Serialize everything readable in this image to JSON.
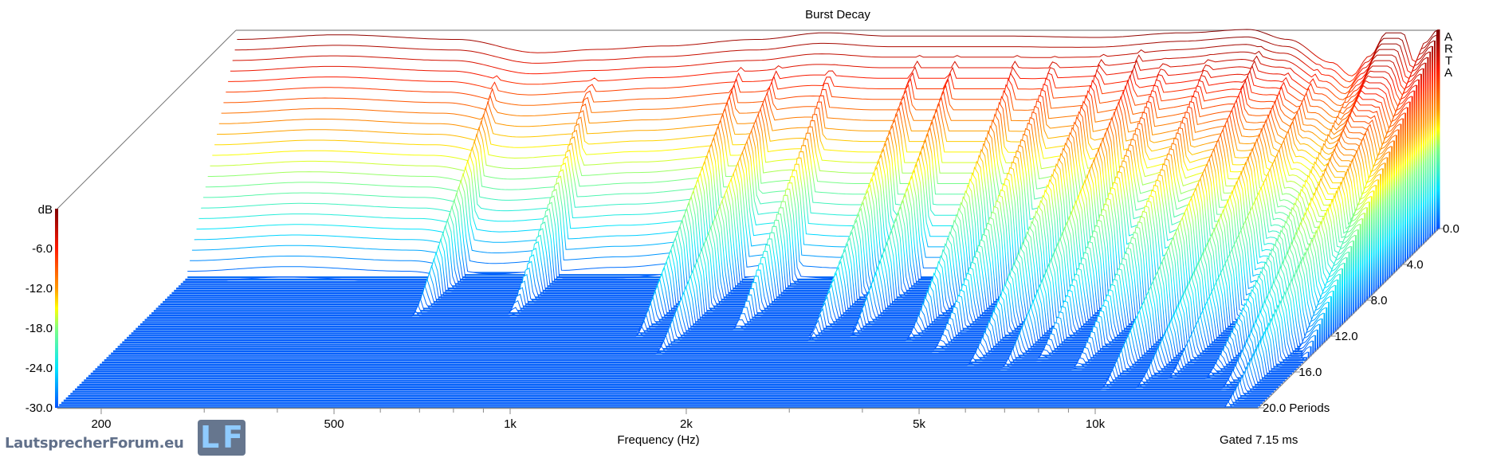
{
  "chart_data": {
    "type": "waterfall",
    "title": "Burst Decay",
    "xlabel": "Frequency (Hz)",
    "x_scale": "log",
    "x_range": [
      168,
      19000
    ],
    "x_ticks": [
      200,
      500,
      1000,
      2000,
      5000,
      10000
    ],
    "x_tick_labels": [
      "200",
      "500",
      "1k",
      "2k",
      "5k",
      "10k"
    ],
    "x_minor_ticks": [
      300,
      400,
      600,
      700,
      800,
      900,
      3000,
      4000,
      6000,
      7000,
      8000,
      9000
    ],
    "z_unit_label": "dB",
    "z_range": [
      -30,
      0
    ],
    "z_ticks": [
      -6,
      -12,
      -18,
      -24,
      -30
    ],
    "z_tick_labels": [
      "-6.0",
      "-12.0",
      "-18.0",
      "-24.0",
      "-30.0"
    ],
    "depth_range": [
      0,
      20
    ],
    "depth_ticks": [
      0,
      4,
      8,
      12,
      16,
      20
    ],
    "depth_tick_labels": [
      "0.0",
      "4.0",
      "8.0",
      "12.0",
      "16.0",
      "20.0 Periods"
    ],
    "footnote": "Gated 7.15 ms",
    "response_0_periods": {
      "freq_hz": [
        168,
        250,
        400,
        550,
        700,
        900,
        1300,
        1700,
        2200,
        3500,
        5000,
        7000,
        9000,
        10500,
        12500,
        13500,
        14500,
        15500,
        16500,
        17300,
        18000,
        19000
      ],
      "db": [
        -1.5,
        -0.8,
        -1.5,
        -3.5,
        -3,
        -2.5,
        -1.5,
        -0.5,
        -1,
        -1,
        -1.2,
        -0.5,
        0,
        -1.5,
        -5,
        -7,
        -4,
        -0.5,
        -0.5,
        -5,
        -2,
        0
      ]
    },
    "base_decay_db_per_period": {
      "below_4k": 5,
      "above_15k": 2
    },
    "resonances": [
      {
        "freq_hz": 480,
        "db": -4,
        "decay_db_per_period": 2.6
      },
      {
        "freq_hz": 700,
        "db": -4,
        "decay_db_per_period": 2.6
      },
      {
        "freq_hz": 1250,
        "db": -3,
        "decay_db_per_period": 2.2
      },
      {
        "freq_hz": 1450,
        "db": -3,
        "decay_db_per_period": 1.9
      },
      {
        "freq_hz": 1800,
        "db": -2,
        "decay_db_per_period": 2.4
      },
      {
        "freq_hz": 2500,
        "db": -2,
        "decay_db_per_period": 2.2
      },
      {
        "freq_hz": 2900,
        "db": -2,
        "decay_db_per_period": 2.3
      },
      {
        "freq_hz": 3700,
        "db": -2,
        "decay_db_per_period": 2.2
      },
      {
        "freq_hz": 4300,
        "db": -2,
        "decay_db_per_period": 2.0
      },
      {
        "freq_hz": 5200,
        "db": -2,
        "decay_db_per_period": 1.8
      },
      {
        "freq_hz": 6000,
        "db": -1.5,
        "decay_db_per_period": 1.8
      },
      {
        "freq_hz": 6700,
        "db": -1.5,
        "decay_db_per_period": 1.9
      },
      {
        "freq_hz": 8000,
        "db": -1,
        "decay_db_per_period": 1.8
      },
      {
        "freq_hz": 9600,
        "db": -1,
        "decay_db_per_period": 1.6
      },
      {
        "freq_hz": 11000,
        "db": -3,
        "decay_db_per_period": 1.5
      },
      {
        "freq_hz": 12000,
        "db": -4,
        "decay_db_per_period": 1.5
      },
      {
        "freq_hz": 14000,
        "db": -6,
        "decay_db_per_period": 1.4
      },
      {
        "freq_hz": 15500,
        "db": -1,
        "decay_db_per_period": 1.6
      },
      {
        "freq_hz": 17000,
        "db": -2,
        "decay_db_per_period": 1.3
      }
    ],
    "colormap": [
      "#0050ff",
      "#00e5ff",
      "#80ff80",
      "#ffff00",
      "#ff9900",
      "#ff1a00",
      "#7f0000"
    ]
  },
  "watermark": {
    "letters": [
      "A",
      "R",
      "T",
      "A"
    ]
  },
  "logo": {
    "initials_left": "L",
    "initials_right": "F",
    "text": "LautsprecherForum.eu"
  }
}
